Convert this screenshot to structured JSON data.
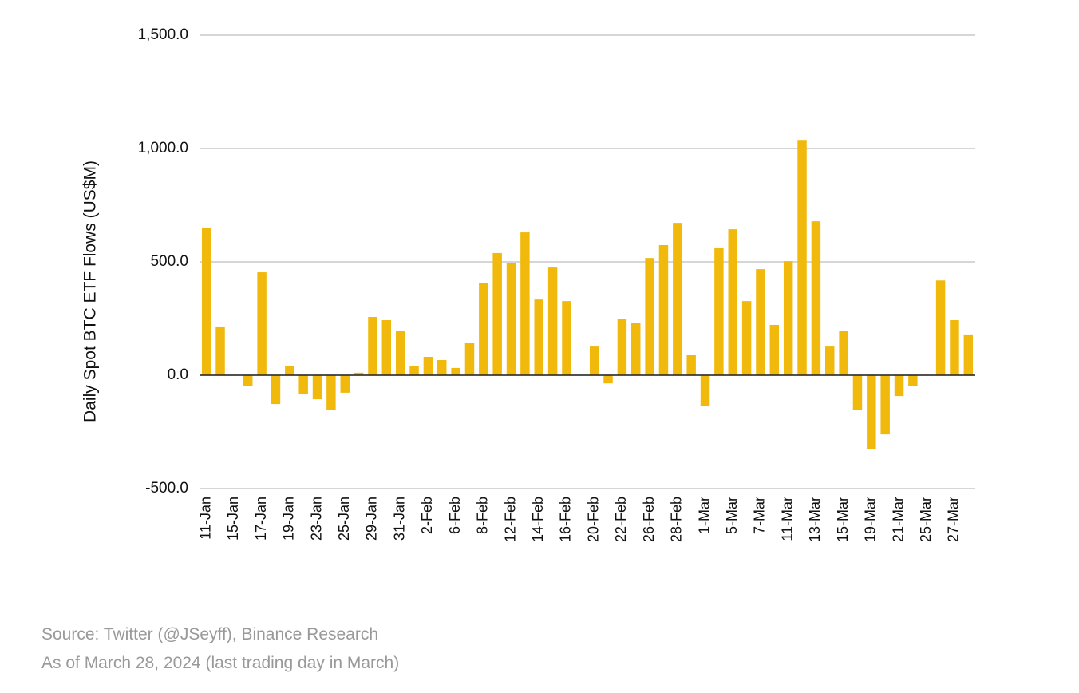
{
  "chart_data": {
    "type": "bar",
    "y_label": "Daily Spot BTC ETF Flows (US$M)",
    "notes": [
      "Source: Twitter (@JSeyff), Binance Research",
      "As of March 28, 2024 (last trading day in March)"
    ],
    "categories": [
      "11-Jan",
      null,
      "15-Jan",
      null,
      "17-Jan",
      null,
      "19-Jan",
      null,
      "23-Jan",
      null,
      "25-Jan",
      null,
      "29-Jan",
      null,
      "31-Jan",
      null,
      "2-Feb",
      null,
      "6-Feb",
      null,
      "8-Feb",
      null,
      "12-Feb",
      null,
      "14-Feb",
      null,
      "16-Feb",
      null,
      "20-Feb",
      null,
      "22-Feb",
      null,
      "26-Feb",
      null,
      "28-Feb",
      null,
      "1-Mar",
      null,
      "5-Mar",
      null,
      "7-Mar",
      null,
      "11-Mar",
      null,
      "13-Mar",
      null,
      "15-Mar",
      null,
      "19-Mar",
      null,
      "21-Mar",
      null,
      "25-Mar",
      null,
      "27-Mar",
      null
    ],
    "values": [
      651,
      215,
      0,
      -49,
      454,
      -127,
      39,
      -84,
      -106,
      -155,
      -77,
      11,
      257,
      243,
      194,
      39,
      81,
      67,
      32,
      144,
      405,
      539,
      493,
      630,
      334,
      475,
      327,
      0,
      130,
      -36,
      250,
      229,
      517,
      574,
      672,
      88,
      -134,
      560,
      644,
      327,
      468,
      222,
      503,
      1038,
      679,
      130,
      194,
      -155,
      -324,
      -261,
      -92,
      -49,
      0,
      418,
      243,
      180
    ],
    "color": "#f0b90b",
    "ylim": [
      -500,
      1500
    ],
    "yticks": [
      {
        "value": -500,
        "label": "-500.0"
      },
      {
        "value": 0,
        "label": "0.0"
      },
      {
        "value": 500,
        "label": "500.0"
      },
      {
        "value": 1000,
        "label": "1,000.0"
      },
      {
        "value": 1500,
        "label": "1,500.0"
      }
    ],
    "grid": true
  }
}
